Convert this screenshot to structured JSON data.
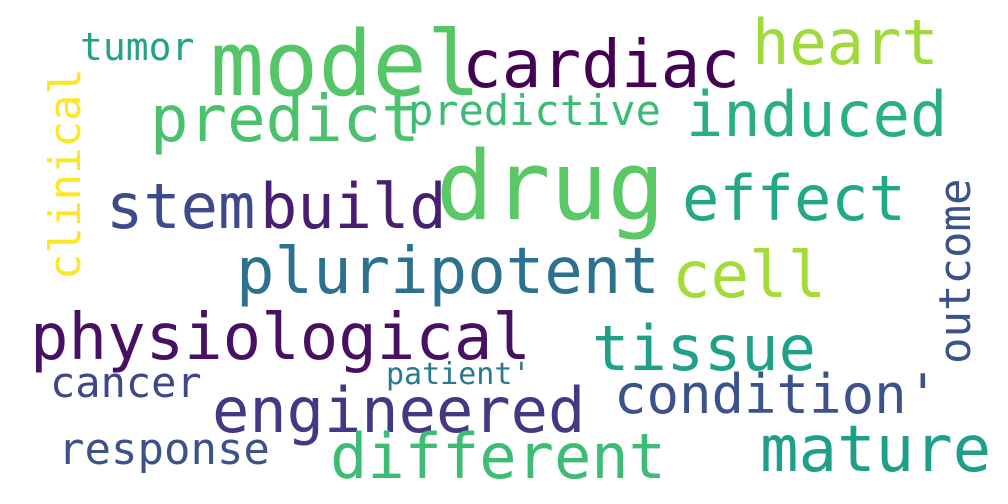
{
  "words": [
    {
      "text": "model",
      "color": "#55c667"
    },
    {
      "text": "drug",
      "color": "#5ac864"
    },
    {
      "text": "cardiac",
      "color": "#440154"
    },
    {
      "text": "heart",
      "color": "#a0da39"
    },
    {
      "text": "tumor",
      "color": "#20a386"
    },
    {
      "text": "predict",
      "color": "#4ac16d"
    },
    {
      "text": "predictive",
      "color": "#3bbb75"
    },
    {
      "text": "induced",
      "color": "#2ab07f"
    },
    {
      "text": "clinical",
      "color": "#fde725"
    },
    {
      "text": "stem",
      "color": "#3e4a89"
    },
    {
      "text": "build",
      "color": "#481f70"
    },
    {
      "text": "effect",
      "color": "#22a884"
    },
    {
      "text": "outcome",
      "color": "#3b528b"
    },
    {
      "text": "pluripotent",
      "color": "#2c728e"
    },
    {
      "text": "cell",
      "color": "#a5db36"
    },
    {
      "text": "physiological",
      "color": "#471063"
    },
    {
      "text": "tissue",
      "color": "#1fa187"
    },
    {
      "text": "cancer",
      "color": "#3f4788"
    },
    {
      "text": "patient'",
      "color": "#2a788e"
    },
    {
      "text": "condition'",
      "color": "#3b528b"
    },
    {
      "text": "engineered",
      "color": "#453882"
    },
    {
      "text": "mature",
      "color": "#1f9e89"
    },
    {
      "text": "response",
      "color": "#3b528b"
    },
    {
      "text": "different",
      "color": "#3dbc74"
    }
  ]
}
